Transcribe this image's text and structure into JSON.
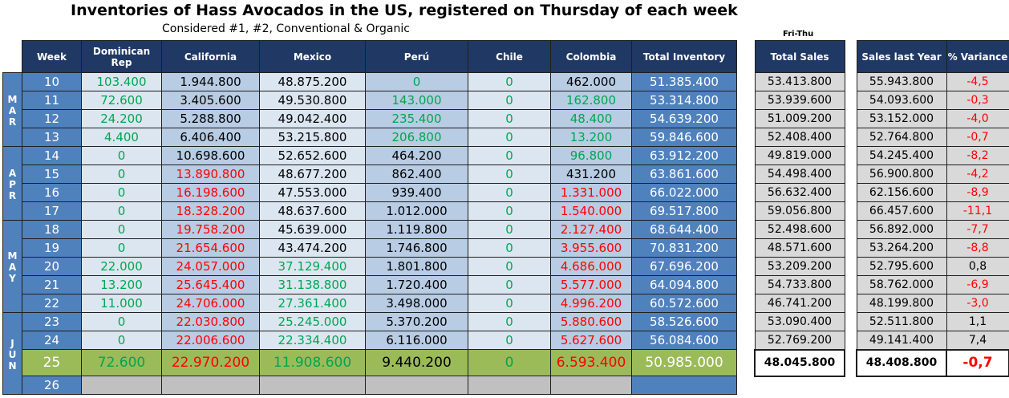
{
  "title": "Inventories of Hass Avocados in the US, registered on Thursday of each week",
  "subtitle": "Considered #1, #2, Conventional & Organic",
  "sales_period_label": "Fri-Thu",
  "headers": {
    "week": "Week",
    "dominican": "Dominican Rep",
    "california": "California",
    "mexico": "Mexico",
    "peru": "Perú",
    "chile": "Chile",
    "colombia": "Colombia",
    "total": "Total Inventory",
    "total_sales": "Total Sales",
    "sales_last_year": "Sales last Year",
    "variance": "% Variance"
  },
  "months": [
    {
      "letters": [
        "M",
        "A",
        "R"
      ]
    },
    {
      "letters": [
        "A",
        "P",
        "R"
      ]
    },
    {
      "letters": [
        "M",
        "A",
        "Y"
      ]
    },
    {
      "letters": [
        "J",
        "U",
        "N"
      ]
    }
  ],
  "colors": {
    "header": "#203864",
    "week": "#4f81bd",
    "light": "#dce6f1",
    "medium": "#b8cce4",
    "highlight": "#9bbb59",
    "green_text": "#00a651",
    "red_text": "#ff0000"
  },
  "rows": [
    {
      "week": "10",
      "dom": "103.400",
      "dom_c": "green",
      "cal": "1.944.800",
      "cal_c": "black",
      "mex": "48.875.200",
      "mex_c": "black",
      "peru": "0",
      "peru_c": "green",
      "chile": "0",
      "col": "462.000",
      "col_c": "black",
      "total": "51.385.400",
      "sales": "53.413.800",
      "last": "55.943.800",
      "var": "-4,5",
      "var_c": "red"
    },
    {
      "week": "11",
      "dom": "72.600",
      "dom_c": "green",
      "cal": "3.405.600",
      "cal_c": "black",
      "mex": "49.530.800",
      "mex_c": "black",
      "peru": "143.000",
      "peru_c": "green",
      "chile": "0",
      "col": "162.800",
      "col_c": "green",
      "total": "53.314.800",
      "sales": "53.939.600",
      "last": "54.093.600",
      "var": "-0,3",
      "var_c": "red"
    },
    {
      "week": "12",
      "dom": "24.200",
      "dom_c": "green",
      "cal": "5.288.800",
      "cal_c": "black",
      "mex": "49.042.400",
      "mex_c": "black",
      "peru": "235.400",
      "peru_c": "green",
      "chile": "0",
      "col": "48.400",
      "col_c": "green",
      "total": "54.639.200",
      "sales": "51.009.200",
      "last": "53.152.000",
      "var": "-4,0",
      "var_c": "red"
    },
    {
      "week": "13",
      "dom": "4.400",
      "dom_c": "green",
      "cal": "6.406.400",
      "cal_c": "black",
      "mex": "53.215.800",
      "mex_c": "black",
      "peru": "206.800",
      "peru_c": "green",
      "chile": "0",
      "col": "13.200",
      "col_c": "green",
      "total": "59.846.600",
      "sales": "52.408.400",
      "last": "52.764.800",
      "var": "-0,7",
      "var_c": "red"
    },
    {
      "week": "14",
      "dom": "0",
      "dom_c": "green",
      "cal": "10.698.600",
      "cal_c": "black",
      "mex": "52.652.600",
      "mex_c": "black",
      "peru": "464.200",
      "peru_c": "black",
      "chile": "0",
      "col": "96.800",
      "col_c": "green",
      "total": "63.912.200",
      "sales": "49.819.000",
      "last": "54.245.400",
      "var": "-8,2",
      "var_c": "red"
    },
    {
      "week": "15",
      "dom": "0",
      "dom_c": "green",
      "cal": "13.890.800",
      "cal_c": "red",
      "mex": "48.677.200",
      "mex_c": "black",
      "peru": "862.400",
      "peru_c": "black",
      "chile": "0",
      "col": "431.200",
      "col_c": "black",
      "total": "63.861.600",
      "sales": "54.498.400",
      "last": "56.900.800",
      "var": "-4,2",
      "var_c": "red"
    },
    {
      "week": "16",
      "dom": "0",
      "dom_c": "green",
      "cal": "16.198.600",
      "cal_c": "red",
      "mex": "47.553.000",
      "mex_c": "black",
      "peru": "939.400",
      "peru_c": "black",
      "chile": "0",
      "col": "1.331.000",
      "col_c": "red",
      "total": "66.022.000",
      "sales": "56.632.400",
      "last": "62.156.600",
      "var": "-8,9",
      "var_c": "red"
    },
    {
      "week": "17",
      "dom": "0",
      "dom_c": "green",
      "cal": "18.328.200",
      "cal_c": "red",
      "mex": "48.637.600",
      "mex_c": "black",
      "peru": "1.012.000",
      "peru_c": "black",
      "chile": "0",
      "col": "1.540.000",
      "col_c": "red",
      "total": "69.517.800",
      "sales": "59.056.800",
      "last": "66.457.600",
      "var": "-11,1",
      "var_c": "red"
    },
    {
      "week": "18",
      "dom": "0",
      "dom_c": "green",
      "cal": "19.758.200",
      "cal_c": "red",
      "mex": "45.639.000",
      "mex_c": "black",
      "peru": "1.119.800",
      "peru_c": "black",
      "chile": "0",
      "col": "2.127.400",
      "col_c": "red",
      "total": "68.644.400",
      "sales": "52.498.600",
      "last": "56.892.000",
      "var": "-7,7",
      "var_c": "red"
    },
    {
      "week": "19",
      "dom": "0",
      "dom_c": "green",
      "cal": "21.654.600",
      "cal_c": "red",
      "mex": "43.474.200",
      "mex_c": "black",
      "peru": "1.746.800",
      "peru_c": "black",
      "chile": "0",
      "col": "3.955.600",
      "col_c": "red",
      "total": "70.831.200",
      "sales": "48.571.600",
      "last": "53.264.200",
      "var": "-8,8",
      "var_c": "red"
    },
    {
      "week": "20",
      "dom": "22.000",
      "dom_c": "green",
      "cal": "24.057.000",
      "cal_c": "red",
      "mex": "37.129.400",
      "mex_c": "green",
      "peru": "1.801.800",
      "peru_c": "black",
      "chile": "0",
      "col": "4.686.000",
      "col_c": "red",
      "total": "67.696.200",
      "sales": "53.209.200",
      "last": "52.795.600",
      "var": "0,8",
      "var_c": "black"
    },
    {
      "week": "21",
      "dom": "13.200",
      "dom_c": "green",
      "cal": "25.645.400",
      "cal_c": "red",
      "mex": "31.138.800",
      "mex_c": "green",
      "peru": "1.720.400",
      "peru_c": "black",
      "chile": "0",
      "col": "5.577.000",
      "col_c": "red",
      "total": "64.094.800",
      "sales": "54.733.800",
      "last": "58.762.000",
      "var": "-6,9",
      "var_c": "red"
    },
    {
      "week": "22",
      "dom": "11.000",
      "dom_c": "green",
      "cal": "24.706.000",
      "cal_c": "red",
      "mex": "27.361.400",
      "mex_c": "green",
      "peru": "3.498.000",
      "peru_c": "black",
      "chile": "0",
      "col": "4.996.200",
      "col_c": "red",
      "total": "60.572.600",
      "sales": "46.741.200",
      "last": "48.199.800",
      "var": "-3,0",
      "var_c": "red"
    },
    {
      "week": "23",
      "dom": "0",
      "dom_c": "green",
      "cal": "22.030.800",
      "cal_c": "red",
      "mex": "25.245.000",
      "mex_c": "green",
      "peru": "5.370.200",
      "peru_c": "black",
      "chile": "0",
      "col": "5.880.600",
      "col_c": "red",
      "total": "58.526.600",
      "sales": "53.090.400",
      "last": "52.511.800",
      "var": "1,1",
      "var_c": "black"
    },
    {
      "week": "24",
      "dom": "0",
      "dom_c": "green",
      "cal": "22.006.600",
      "cal_c": "red",
      "mex": "22.334.400",
      "mex_c": "green",
      "peru": "6.116.000",
      "peru_c": "black",
      "chile": "0",
      "col": "5.627.600",
      "col_c": "red",
      "total": "56.084.600",
      "sales": "52.769.200",
      "last": "49.141.400",
      "var": "7,4",
      "var_c": "black"
    },
    {
      "week": "25",
      "dom": "72.600",
      "dom_c": "green",
      "cal": "22.970.200",
      "cal_c": "red",
      "mex": "11.908.600",
      "mex_c": "green",
      "peru": "9.440.200",
      "peru_c": "black",
      "chile": "0",
      "col": "6.593.400",
      "col_c": "red",
      "total": "50.985.000",
      "sales": "48.045.800",
      "last": "48.408.800",
      "var": "-0,7",
      "var_c": "red"
    }
  ],
  "next_week": "26"
}
